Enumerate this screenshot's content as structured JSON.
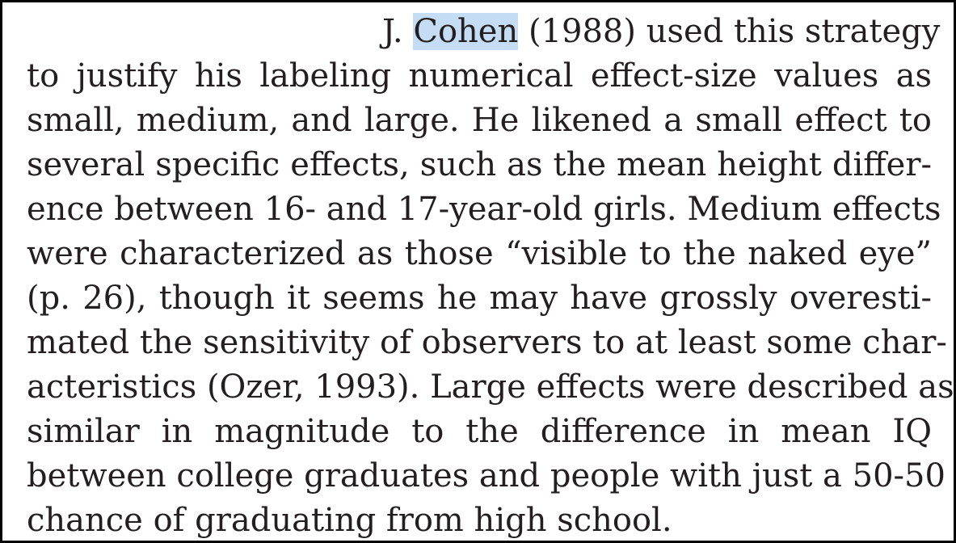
{
  "document": {
    "highlight_color": "#c5dcf5",
    "first_line": {
      "before": "J. ",
      "highlighted": "Cohen",
      "after": " (1988) used this strategy"
    },
    "lines": [
      "to justify his labeling numerical effect-size values as",
      "small, medium, and large. He likened a small effect to",
      "several specific effects, such as the mean height differ-",
      "ence between 16- and 17-year-old girls. Medium effects",
      "were characterized as those “visible to the naked eye”",
      "(p. 26), though it seems he may have grossly overesti-",
      "mated the sensitivity of observers to at least some char-",
      "acteristics (Ozer, 1993). Large effects were described as",
      "similar in magnitude to the difference in mean IQ",
      "between college graduates and people with just a 50-50",
      "chance of graduating from high school."
    ]
  }
}
